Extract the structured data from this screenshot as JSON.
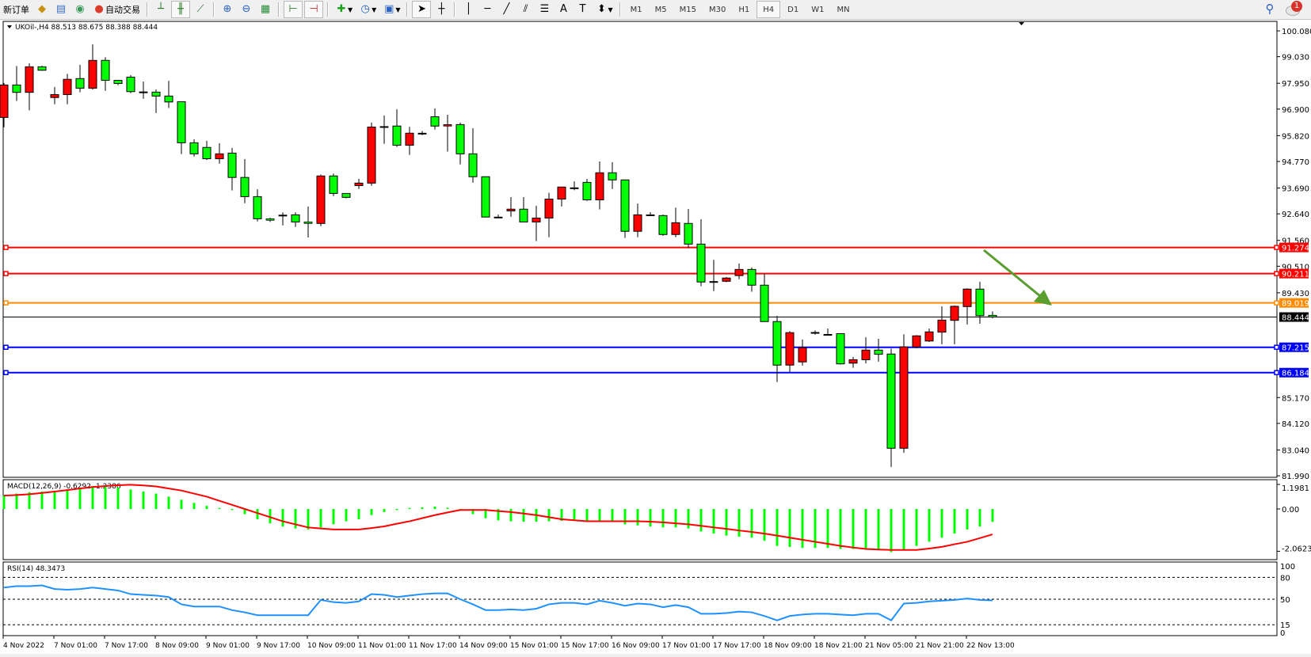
{
  "toolbar": {
    "new_order": "新订单",
    "auto_trading": "自动交易",
    "timeframes": [
      "M1",
      "M5",
      "M15",
      "M30",
      "H1",
      "H4",
      "D1",
      "W1",
      "MN"
    ],
    "active_timeframe": "H4",
    "notification_count": "1",
    "icons": [
      "gold-icon",
      "history-icon",
      "signal-icon",
      "auto-trading-icon",
      "bar-chart-icon",
      "candlestick-icon",
      "line-chart-icon",
      "zoom-in-icon",
      "zoom-out-icon",
      "tile-windows-icon",
      "auto-scroll-icon",
      "chart-shift-icon",
      "indicators-icon",
      "periods-icon",
      "templates-icon",
      "cursor-icon",
      "crosshair-icon",
      "vertical-line-icon",
      "horizontal-line-icon",
      "trendline-icon",
      "equidistant-channel-icon",
      "fibonacci-icon",
      "text-icon",
      "text-label-icon",
      "arrows-icon",
      "search-icon",
      "chat-icon"
    ]
  },
  "chart_data": {
    "type": "candlestick",
    "symbol_header": "UKOil-,H4  88.513 88.675 88.388 88.444",
    "up_color": "#ff0000",
    "down_color": "#00ff00",
    "ylim": [
      81.99,
      100.08
    ],
    "price_ticks": [
      "100.080",
      "99.030",
      "97.950",
      "96.900",
      "95.820",
      "94.770",
      "93.690",
      "92.640",
      "91.560",
      "90.510",
      "89.430",
      "85.170",
      "84.120",
      "83.040",
      "81.990"
    ],
    "time_labels": [
      "4 Nov 2022",
      "7 Nov 01:00",
      "7 Nov 17:00",
      "8 Nov 09:00",
      "9 Nov 01:00",
      "9 Nov 17:00",
      "10 Nov 09:00",
      "11 Nov 01:00",
      "11 Nov 17:00",
      "14 Nov 09:00",
      "15 Nov 01:00",
      "15 Nov 17:00",
      "16 Nov 09:00",
      "17 Nov 01:00",
      "17 Nov 17:00",
      "18 Nov 09:00",
      "18 Nov 21:00",
      "21 Nov 05:00",
      "21 Nov 21:00",
      "22 Nov 13:00"
    ],
    "ohlc": [
      [
        96.56,
        97.96,
        96.16,
        97.88
      ],
      [
        97.88,
        98.65,
        97.23,
        97.58
      ],
      [
        97.58,
        98.76,
        96.85,
        98.62
      ],
      [
        98.62,
        98.66,
        98.45,
        98.48
      ],
      [
        97.37,
        97.8,
        97.1,
        97.49
      ],
      [
        97.49,
        98.33,
        97.1,
        98.11
      ],
      [
        98.14,
        98.7,
        97.58,
        97.75
      ],
      [
        97.75,
        99.53,
        97.69,
        98.88
      ],
      [
        98.88,
        99.01,
        97.64,
        98.07
      ],
      [
        98.07,
        98.07,
        97.87,
        97.94
      ],
      [
        98.2,
        98.28,
        97.55,
        97.61
      ],
      [
        97.6,
        98.02,
        97.32,
        97.6
      ],
      [
        97.59,
        97.7,
        96.74,
        97.43
      ],
      [
        97.43,
        98.05,
        96.94,
        97.19
      ],
      [
        97.2,
        97.2,
        95.07,
        95.53
      ],
      [
        95.53,
        95.67,
        94.97,
        95.08
      ],
      [
        95.34,
        95.61,
        94.83,
        94.88
      ],
      [
        94.88,
        95.51,
        94.68,
        95.08
      ],
      [
        95.11,
        95.32,
        93.59,
        94.12
      ],
      [
        94.12,
        94.87,
        93.07,
        93.34
      ],
      [
        93.34,
        93.64,
        92.33,
        92.44
      ],
      [
        92.44,
        92.48,
        92.31,
        92.38
      ],
      [
        92.59,
        92.7,
        92.17,
        92.59
      ],
      [
        92.6,
        92.7,
        92.11,
        92.31
      ],
      [
        92.31,
        92.94,
        91.68,
        92.25
      ],
      [
        92.25,
        94.24,
        92.14,
        94.18
      ],
      [
        94.18,
        94.28,
        93.36,
        93.47
      ],
      [
        93.47,
        93.47,
        93.27,
        93.31
      ],
      [
        93.79,
        94.06,
        93.65,
        93.89
      ],
      [
        93.89,
        96.35,
        93.78,
        96.17
      ],
      [
        96.19,
        96.64,
        95.49,
        96.19
      ],
      [
        96.21,
        96.89,
        95.36,
        95.43
      ],
      [
        95.43,
        96.18,
        95.04,
        95.92
      ],
      [
        95.92,
        96.01,
        95.84,
        95.92
      ],
      [
        96.59,
        96.93,
        96.07,
        96.21
      ],
      [
        96.21,
        96.67,
        95.17,
        96.27
      ],
      [
        96.27,
        96.35,
        94.65,
        95.08
      ],
      [
        95.08,
        96.12,
        93.91,
        94.15
      ],
      [
        94.15,
        94.15,
        92.51,
        92.51
      ],
      [
        92.51,
        92.61,
        92.51,
        92.51
      ],
      [
        92.76,
        93.32,
        92.52,
        92.83
      ],
      [
        92.83,
        93.32,
        92.31,
        92.31
      ],
      [
        92.31,
        92.97,
        91.53,
        92.47
      ],
      [
        92.47,
        93.5,
        91.69,
        93.24
      ],
      [
        93.24,
        93.73,
        92.94,
        93.73
      ],
      [
        93.7,
        93.96,
        93.6,
        93.7
      ],
      [
        93.92,
        94.06,
        93.17,
        93.21
      ],
      [
        93.21,
        94.77,
        92.82,
        94.31
      ],
      [
        94.31,
        94.74,
        93.65,
        94.02
      ],
      [
        94.02,
        94.02,
        91.66,
        91.93
      ],
      [
        91.93,
        93.06,
        91.69,
        92.6
      ],
      [
        92.6,
        92.71,
        92.56,
        92.6
      ],
      [
        92.57,
        92.61,
        91.75,
        91.8
      ],
      [
        91.8,
        92.89,
        91.69,
        92.28
      ],
      [
        92.25,
        92.84,
        91.25,
        91.41
      ],
      [
        91.41,
        92.42,
        89.7,
        89.87
      ],
      [
        89.89,
        90.77,
        89.5,
        89.89
      ],
      [
        89.9,
        90.07,
        89.86,
        90.03
      ],
      [
        90.13,
        90.62,
        89.98,
        90.38
      ],
      [
        90.38,
        90.46,
        89.47,
        89.74
      ],
      [
        89.74,
        90.2,
        88.26,
        88.26
      ],
      [
        88.26,
        88.49,
        85.8,
        86.49
      ],
      [
        86.49,
        87.87,
        86.21,
        87.81
      ],
      [
        86.62,
        87.53,
        86.47,
        87.2
      ],
      [
        87.82,
        87.9,
        87.73,
        87.82
      ],
      [
        87.74,
        87.98,
        87.7,
        87.74
      ],
      [
        87.77,
        87.77,
        86.51,
        86.54
      ],
      [
        86.57,
        86.82,
        86.38,
        86.71
      ],
      [
        86.71,
        87.62,
        86.56,
        87.1
      ],
      [
        87.1,
        87.56,
        86.63,
        86.93
      ],
      [
        86.94,
        87.16,
        82.35,
        83.11
      ],
      [
        83.11,
        87.74,
        82.92,
        87.23
      ],
      [
        87.23,
        87.71,
        87.17,
        87.68
      ],
      [
        87.47,
        87.98,
        87.43,
        87.84
      ],
      [
        87.83,
        88.88,
        87.34,
        88.32
      ],
      [
        88.31,
        88.91,
        87.34,
        88.88
      ],
      [
        88.87,
        89.61,
        88.14,
        89.58
      ],
      [
        89.58,
        89.88,
        88.17,
        88.5
      ],
      [
        88.513,
        88.675,
        88.388,
        88.444
      ]
    ],
    "bid_line": {
      "value": 88.444,
      "label": "88.444",
      "color": "#000000"
    },
    "horizontal_lines": [
      {
        "value": 91.274,
        "label": "91.274",
        "color": "#ff0000"
      },
      {
        "value": 90.211,
        "label": "90.211",
        "color": "#ff0000"
      },
      {
        "value": 89.019,
        "label": "89.019",
        "color": "#ff8c00"
      },
      {
        "value": 87.215,
        "label": "87.215",
        "color": "#0000ff"
      },
      {
        "value": 86.184,
        "label": "86.184",
        "color": "#0000ff"
      }
    ],
    "arrow": {
      "color": "#5a9e2f",
      "direction": "down-right"
    },
    "macd": {
      "label": "MACD(12,26,9) -0.6292 -1.2386",
      "ylim": [
        -2.0623,
        1.1981
      ],
      "ticks": [
        "1.1981",
        "0.00",
        "-2.0623"
      ],
      "histogram_color": "#00ff00",
      "signal_color": "#ff0000",
      "histogram": [
        0.65,
        0.75,
        0.82,
        0.85,
        0.88,
        0.95,
        1.0,
        1.12,
        1.15,
        1.05,
        0.95,
        0.85,
        0.75,
        0.6,
        0.45,
        0.3,
        0.15,
        0.05,
        -0.05,
        -0.25,
        -0.5,
        -0.7,
        -0.85,
        -0.95,
        -1.0,
        -0.9,
        -0.75,
        -0.6,
        -0.5,
        -0.3,
        -0.15,
        -0.05,
        0.05,
        0.08,
        0.12,
        0.06,
        -0.05,
        -0.25,
        -0.45,
        -0.55,
        -0.6,
        -0.62,
        -0.62,
        -0.6,
        -0.58,
        -0.57,
        -0.6,
        -0.6,
        -0.62,
        -0.75,
        -0.8,
        -0.85,
        -0.9,
        -0.9,
        -0.95,
        -1.1,
        -1.2,
        -1.3,
        -1.35,
        -1.4,
        -1.55,
        -1.8,
        -1.85,
        -1.9,
        -1.9,
        -1.9,
        -1.95,
        -1.95,
        -1.95,
        -1.95,
        -2.1,
        -2.0,
        -1.8,
        -1.6,
        -1.4,
        -1.2,
        -1.0,
        -0.85,
        -0.6292
      ],
      "signal": [
        0.65,
        0.68,
        0.72,
        0.78,
        0.85,
        0.92,
        1.0,
        1.07,
        1.12,
        1.16,
        1.18,
        1.15,
        1.1,
        1.0,
        0.9,
        0.75,
        0.6,
        0.4,
        0.2,
        0.0,
        -0.2,
        -0.4,
        -0.6,
        -0.75,
        -0.9,
        -0.95,
        -1.0,
        -1.0,
        -1.0,
        -0.93,
        -0.85,
        -0.72,
        -0.6,
        -0.45,
        -0.3,
        -0.17,
        -0.05,
        -0.05,
        -0.05,
        -0.1,
        -0.15,
        -0.22,
        -0.3,
        -0.4,
        -0.5,
        -0.55,
        -0.6,
        -0.6,
        -0.6,
        -0.6,
        -0.6,
        -0.62,
        -0.65,
        -0.7,
        -0.75,
        -0.82,
        -0.9,
        -0.97,
        -1.05,
        -1.12,
        -1.2,
        -1.3,
        -1.4,
        -1.5,
        -1.6,
        -1.7,
        -1.8,
        -1.88,
        -1.95,
        -1.98,
        -2.0,
        -2.0,
        -2.0,
        -1.93,
        -1.85,
        -1.72,
        -1.6,
        -1.42,
        -1.2386
      ]
    },
    "rsi": {
      "label": "RSI(14) 48.3473",
      "ylim": [
        0,
        100
      ],
      "ticks": [
        "100",
        "80",
        "50",
        "15",
        "0"
      ],
      "levels": [
        80,
        50,
        15
      ],
      "color": "#1e90ff",
      "values": [
        66,
        68,
        68,
        69,
        64,
        63,
        64,
        66,
        64,
        62,
        57,
        56,
        55,
        53,
        43,
        40,
        40,
        40,
        35,
        32,
        28,
        28,
        28,
        28,
        28,
        49,
        46,
        45,
        47,
        57,
        56,
        53,
        55,
        57,
        58,
        58,
        50,
        43,
        35,
        35,
        36,
        35,
        37,
        43,
        45,
        45,
        43,
        48,
        45,
        41,
        44,
        43,
        39,
        42,
        39,
        30,
        30,
        31,
        33,
        32,
        27,
        21,
        27,
        29,
        30,
        30,
        29,
        28,
        30,
        30,
        21,
        44,
        45,
        47,
        48,
        49,
        51,
        49,
        48.3473
      ]
    }
  }
}
